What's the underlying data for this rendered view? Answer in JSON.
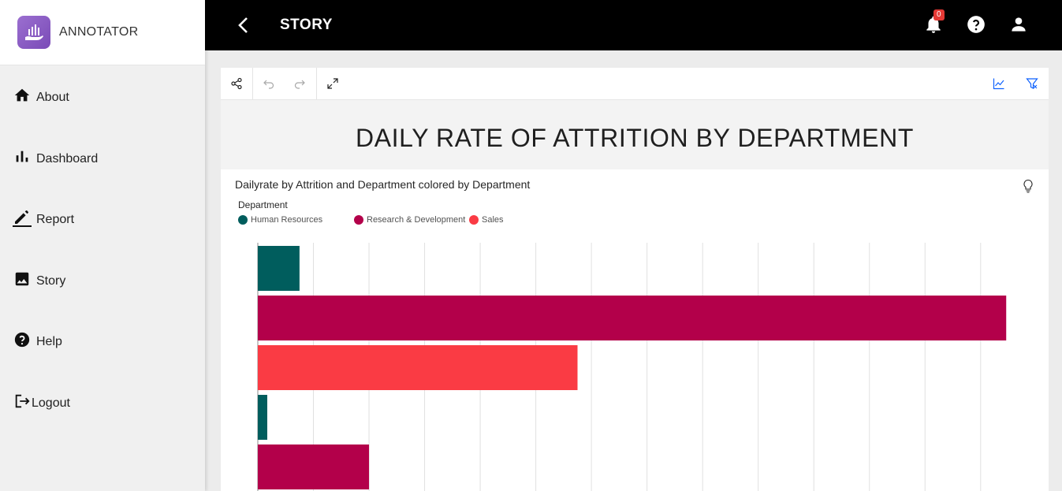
{
  "brand": {
    "name": "ANNOTATOR",
    "logo_icon": "hand-chart-icon",
    "logo_color": "#8e5cc7"
  },
  "sidebar": {
    "items": [
      {
        "label": "About",
        "icon": "home-icon"
      },
      {
        "label": "Dashboard",
        "icon": "bar-chart-icon"
      },
      {
        "label": "Report",
        "icon": "pencil-icon"
      },
      {
        "label": "Story",
        "icon": "image-icon"
      },
      {
        "label": "Help",
        "icon": "help-circle-icon"
      },
      {
        "label": "Logout",
        "icon": "logout-icon"
      }
    ]
  },
  "header": {
    "title": "STORY",
    "notification_count": "0",
    "icons": [
      "back-arrow-icon",
      "bell-icon",
      "help-icon",
      "user-icon"
    ]
  },
  "toolbar": {
    "left_icons": [
      "share-icon",
      "undo-icon",
      "redo-icon",
      "expand-icon"
    ],
    "right_icons": [
      "chart-line-icon",
      "filter-icon"
    ],
    "accent_color": "#0f62fe"
  },
  "story": {
    "title": "DAILY RATE OF ATTRITION BY DEPARTMENT"
  },
  "chart_data": {
    "type": "bar",
    "orientation": "horizontal",
    "title": "Dailyrate by Attrition and Department colored by Department",
    "legend_title": "Department",
    "legend_placement": "top-left",
    "grid": true,
    "xlim": [
      0,
      67000
    ],
    "series": [
      {
        "name": "Human Resources",
        "color": "#005d5d"
      },
      {
        "name": "Research & Development",
        "color": "#b3004a"
      },
      {
        "name": "Sales",
        "color": "#fa3b44"
      }
    ],
    "bars": [
      {
        "series": "Human Resources",
        "value": 3750
      },
      {
        "series": "Research & Development",
        "value": 67300
      },
      {
        "series": "Sales",
        "value": 28750
      },
      {
        "series": "Human Resources",
        "value": 850
      },
      {
        "series": "Research & Development",
        "value": 10000
      }
    ]
  }
}
